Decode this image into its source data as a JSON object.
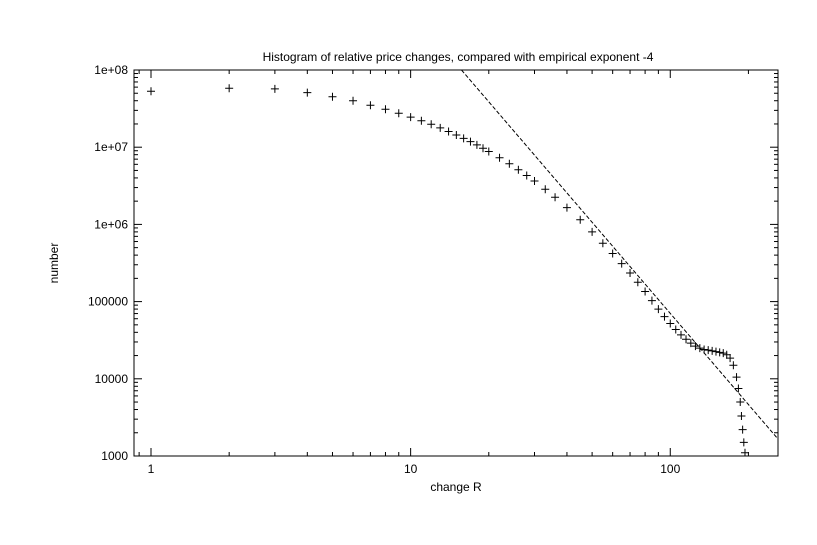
{
  "chart_data": {
    "type": "scatter",
    "title": "Histogram of relative price changes, compared with empirical exponent -4",
    "xlabel": "change R",
    "ylabel": "number",
    "x_scale": "log",
    "y_scale": "log",
    "xlim": [
      0.86,
      260
    ],
    "ylim": [
      1000,
      100000000
    ],
    "grid": false,
    "legend": "none",
    "marker": "plus",
    "color": "#000000",
    "x_ticks": [
      {
        "value": 1,
        "label": "1"
      },
      {
        "value": 10,
        "label": "10"
      },
      {
        "value": 100,
        "label": "100"
      }
    ],
    "y_ticks": [
      {
        "value": 1000,
        "label": "1000"
      },
      {
        "value": 10000,
        "label": "10000"
      },
      {
        "value": 100000,
        "label": "100000"
      },
      {
        "value": 1000000,
        "label": "1e+06"
      },
      {
        "value": 10000000,
        "label": "1e+07"
      },
      {
        "value": 100000000,
        "label": "1e+08"
      }
    ],
    "series": [
      {
        "type": "scatter",
        "points": [
          [
            1,
            53000000
          ],
          [
            2,
            58000000
          ],
          [
            3,
            57000000
          ],
          [
            4,
            51000000
          ],
          [
            5,
            45000000
          ],
          [
            6,
            40000000
          ],
          [
            7,
            35000000
          ],
          [
            8,
            31000000
          ],
          [
            9,
            27500000
          ],
          [
            10,
            24500000
          ],
          [
            11,
            22000000
          ],
          [
            12,
            19800000
          ],
          [
            13,
            17800000
          ],
          [
            14,
            16000000
          ],
          [
            15,
            14400000
          ],
          [
            16,
            13000000
          ],
          [
            17,
            11800000
          ],
          [
            18,
            10700000
          ],
          [
            19,
            9700000
          ],
          [
            20,
            8800000
          ],
          [
            22,
            7300000
          ],
          [
            24,
            6100000
          ],
          [
            26,
            5100000
          ],
          [
            28,
            4300000
          ],
          [
            30,
            3650000
          ],
          [
            33,
            2850000
          ],
          [
            36,
            2250000
          ],
          [
            40,
            1650000
          ],
          [
            45,
            1150000
          ],
          [
            50,
            800000
          ],
          [
            55,
            570000
          ],
          [
            60,
            420000
          ],
          [
            65,
            310000
          ],
          [
            70,
            235000
          ],
          [
            75,
            178000
          ],
          [
            80,
            135000
          ],
          [
            85,
            103000
          ],
          [
            90,
            80000
          ],
          [
            95,
            64000
          ],
          [
            100,
            52000
          ],
          [
            105,
            43500
          ],
          [
            110,
            37000
          ],
          [
            115,
            32500
          ],
          [
            120,
            29000
          ],
          [
            125,
            26500
          ],
          [
            130,
            25000
          ],
          [
            135,
            24000
          ],
          [
            140,
            23500
          ],
          [
            145,
            23000
          ],
          [
            150,
            22500
          ],
          [
            155,
            22000
          ],
          [
            160,
            21500
          ],
          [
            165,
            20500
          ],
          [
            170,
            18500
          ],
          [
            175,
            15000
          ],
          [
            180,
            10500
          ],
          [
            183,
            7500
          ],
          [
            186,
            5000
          ],
          [
            188,
            3300
          ],
          [
            190,
            2200
          ],
          [
            192,
            1500
          ],
          [
            194,
            1100
          ]
        ]
      },
      {
        "type": "line",
        "name": "",
        "exponent": -4,
        "points": [
          [
            15.7,
            100000000
          ],
          [
            260,
            1660
          ]
        ]
      }
    ]
  }
}
